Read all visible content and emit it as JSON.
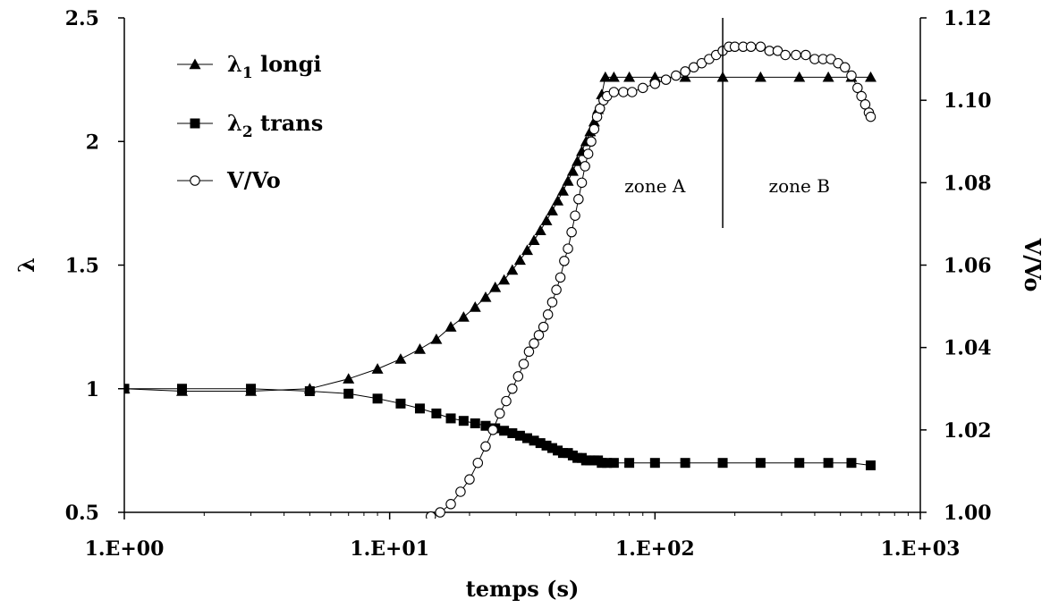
{
  "chart_data": {
    "type": "scatter",
    "xlabel": "temps (s)",
    "ylabel": "λ",
    "y2label": "V/Vo",
    "xscale": "log",
    "xlim": [
      1,
      1000
    ],
    "ylim": [
      0.5,
      2.5
    ],
    "y2lim": [
      1.0,
      1.12
    ],
    "x_ticks": [
      "1.E+00",
      "1.E+01",
      "1.E+02",
      "1.E+03"
    ],
    "y_ticks": [
      "0.5",
      "1",
      "1.5",
      "2",
      "2.5"
    ],
    "y2_ticks": [
      "1.00",
      "1.02",
      "1.04",
      "1.06",
      "1.08",
      "1.10",
      "1.12"
    ],
    "legend_position": "top-left",
    "series": [
      {
        "name": "λ1 longi",
        "legend_main": "λ",
        "legend_sub": "1",
        "legend_rest": " longi",
        "marker": "triangle",
        "axis": "left",
        "x": [
          1.0,
          1.65,
          3.0,
          5.0,
          7.0,
          9.0,
          11.0,
          13.0,
          15.0,
          17.0,
          19.0,
          21.0,
          23.0,
          25.0,
          27.0,
          29.0,
          31.0,
          33.0,
          35.0,
          37.0,
          39.0,
          41.0,
          43.0,
          45.0,
          47.0,
          49.0,
          51.0,
          53.0,
          55.0,
          57.0,
          59.0,
          61.0,
          63.0,
          65.0,
          70.0,
          80.0,
          100.0,
          130.0,
          180.0,
          250.0,
          350.0,
          450.0,
          550.0,
          650.0
        ],
        "y": [
          1.0,
          0.99,
          0.99,
          1.0,
          1.04,
          1.08,
          1.12,
          1.16,
          1.2,
          1.25,
          1.29,
          1.33,
          1.37,
          1.41,
          1.44,
          1.48,
          1.52,
          1.56,
          1.6,
          1.64,
          1.68,
          1.72,
          1.76,
          1.8,
          1.84,
          1.88,
          1.92,
          1.96,
          2.0,
          2.04,
          2.08,
          2.13,
          2.19,
          2.26,
          2.26,
          2.26,
          2.26,
          2.26,
          2.26,
          2.26,
          2.26,
          2.26,
          2.26,
          2.26
        ]
      },
      {
        "name": "λ2 trans",
        "legend_main": "λ",
        "legend_sub": "2",
        "legend_rest": " trans",
        "marker": "square",
        "axis": "left",
        "x": [
          1.0,
          1.65,
          3.0,
          5.0,
          7.0,
          9.0,
          11.0,
          13.0,
          15.0,
          17.0,
          19.0,
          21.0,
          23.0,
          25.0,
          27.0,
          29.0,
          31.0,
          33.0,
          35.0,
          37.0,
          39.0,
          41.0,
          43.0,
          45.0,
          47.0,
          49.0,
          51.0,
          53.0,
          55.0,
          57.0,
          59.0,
          61.0,
          63.0,
          66.0,
          70.0,
          80.0,
          100.0,
          130.0,
          180.0,
          250.0,
          350.0,
          450.0,
          550.0,
          650.0
        ],
        "y": [
          1.0,
          1.0,
          1.0,
          0.99,
          0.98,
          0.96,
          0.94,
          0.92,
          0.9,
          0.88,
          0.87,
          0.86,
          0.85,
          0.84,
          0.83,
          0.82,
          0.81,
          0.8,
          0.79,
          0.78,
          0.77,
          0.76,
          0.75,
          0.74,
          0.74,
          0.73,
          0.72,
          0.72,
          0.71,
          0.71,
          0.71,
          0.71,
          0.7,
          0.7,
          0.7,
          0.7,
          0.7,
          0.7,
          0.7,
          0.7,
          0.7,
          0.7,
          0.7,
          0.69
        ]
      },
      {
        "name": "V/Vo",
        "marker": "circle-open",
        "axis": "right",
        "x": [
          14.3,
          15.5,
          17.0,
          18.5,
          20.0,
          21.5,
          23.0,
          24.5,
          26.0,
          27.5,
          29.0,
          30.5,
          32.0,
          33.5,
          35.0,
          36.5,
          38.0,
          39.5,
          41.0,
          42.5,
          44.0,
          45.5,
          47.0,
          48.5,
          50.0,
          51.5,
          53.0,
          54.5,
          56.0,
          57.5,
          59.0,
          60.5,
          62.0,
          64.0,
          66.0,
          70.0,
          76.0,
          82.0,
          90.0,
          100.0,
          110.0,
          120.0,
          130.0,
          140.0,
          150.0,
          160.0,
          170.0,
          180.0,
          190.0,
          200.0,
          215.0,
          230.0,
          250.0,
          270.0,
          290.0,
          310.0,
          340.0,
          370.0,
          400.0,
          430.0,
          460.0,
          490.0,
          520.0,
          550.0,
          580.0,
          600.0,
          620.0,
          640.0,
          650.0
        ],
        "y": [
          0.999,
          1.0,
          1.002,
          1.005,
          1.008,
          1.012,
          1.016,
          1.02,
          1.024,
          1.027,
          1.03,
          1.033,
          1.036,
          1.039,
          1.041,
          1.043,
          1.045,
          1.048,
          1.051,
          1.054,
          1.057,
          1.061,
          1.064,
          1.068,
          1.072,
          1.076,
          1.08,
          1.084,
          1.087,
          1.09,
          1.093,
          1.096,
          1.098,
          1.1,
          1.101,
          1.102,
          1.102,
          1.102,
          1.103,
          1.104,
          1.105,
          1.106,
          1.107,
          1.108,
          1.109,
          1.11,
          1.111,
          1.112,
          1.113,
          1.113,
          1.113,
          1.113,
          1.113,
          1.112,
          1.112,
          1.111,
          1.111,
          1.111,
          1.11,
          1.11,
          1.11,
          1.109,
          1.108,
          1.106,
          1.103,
          1.101,
          1.099,
          1.097,
          1.096
        ]
      }
    ],
    "annotations": [
      {
        "text": "zone A",
        "x": 100
      },
      {
        "text": "zone B",
        "x": 350
      }
    ],
    "vline": {
      "x": 180,
      "y_from": 1.65,
      "y_to": 2.5
    }
  }
}
